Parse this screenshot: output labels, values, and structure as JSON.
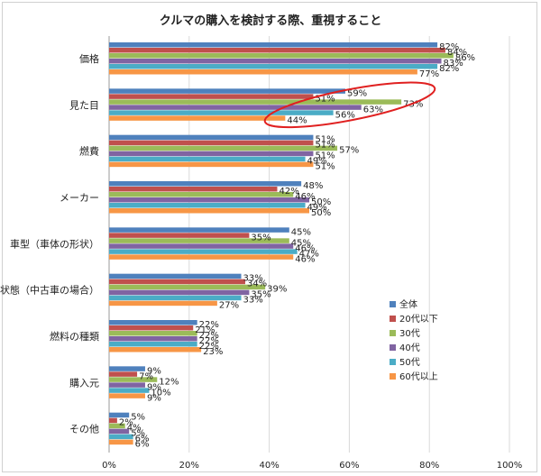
{
  "chart_data": {
    "type": "bar",
    "orientation": "horizontal",
    "title": "クルマの購入を検討する際、重視すること",
    "categories": [
      "価格",
      "見た目",
      "燃費",
      "メーカー",
      "車型（車体の形状）",
      "状態（中古車の場合）",
      "燃料の種類",
      "購入元",
      "その他"
    ],
    "series": [
      {
        "name": "全体",
        "color": "#4f81bd",
        "values": [
          82,
          59,
          51,
          48,
          45,
          33,
          22,
          9,
          5
        ]
      },
      {
        "name": "20代以下",
        "color": "#c0504d",
        "values": [
          84,
          51,
          51,
          42,
          35,
          34,
          21,
          7,
          2
        ]
      },
      {
        "name": "30代",
        "color": "#9bbb59",
        "values": [
          86,
          73,
          57,
          46,
          45,
          39,
          22,
          12,
          4
        ]
      },
      {
        "name": "40代",
        "color": "#8064a2",
        "values": [
          83,
          63,
          51,
          50,
          46,
          35,
          22,
          9,
          5
        ]
      },
      {
        "name": "50代",
        "color": "#4bacc6",
        "values": [
          82,
          56,
          49,
          49,
          47,
          33,
          22,
          10,
          6
        ]
      },
      {
        "name": "60代以上",
        "color": "#f79646",
        "values": [
          77,
          44,
          51,
          50,
          46,
          27,
          23,
          9,
          6
        ]
      }
    ],
    "value_labels": [
      [
        "82%",
        "59%",
        "51%",
        "48%",
        "45%",
        "33%",
        "22%",
        "9%",
        "5%"
      ],
      [
        "84%",
        "51%",
        "51%",
        "42%",
        "35%",
        "34%",
        "21%",
        "7%",
        "2%"
      ],
      [
        "86%",
        "73%",
        "57%",
        "46%",
        "45%",
        "39%",
        "22%",
        "12%",
        "4%"
      ],
      [
        "83%",
        "63%",
        "51%",
        "50%",
        "46%",
        "35%",
        "22%",
        "9%",
        "5%"
      ],
      [
        "82%",
        "56%",
        "49%",
        "49%",
        "47%",
        "33%",
        "22%",
        "10%",
        "6%"
      ],
      [
        "77%",
        "44%",
        "51%",
        "50%",
        "46%",
        "27%",
        "23%",
        "9%",
        "6%"
      ]
    ],
    "xlim": [
      0,
      100
    ],
    "x_ticks": [
      "0%",
      "20%",
      "40%",
      "60%",
      "80%",
      "100%"
    ],
    "legend_position": "right",
    "grid": "vertical",
    "annotation": {
      "type": "ellipse",
      "color": "#e02020",
      "category": "見た目"
    }
  }
}
